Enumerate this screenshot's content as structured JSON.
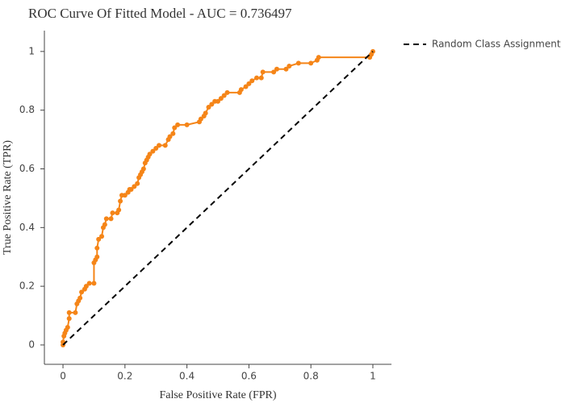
{
  "chart_data": {
    "type": "line",
    "mode": "lines+markers",
    "title": "ROC Curve Of Fitted Model - AUC = 0.736497",
    "x_label": "False Positive Rate (FPR)",
    "y_label": "True Positive Rate (TPR)",
    "xlim": [
      -0.06,
      1.06
    ],
    "ylim": [
      -0.066,
      1.071
    ],
    "xticks": [
      0,
      0.2,
      0.4,
      0.6,
      0.8,
      1
    ],
    "yticks": [
      0,
      0.2,
      0.4,
      0.6,
      0.8,
      1
    ],
    "grid": false,
    "legend_position": "right",
    "series": [
      {
        "color": "#f58518",
        "markers": true,
        "dash": false,
        "x": [
          0,
          0,
          0.003,
          0.006,
          0.01,
          0.015,
          0.02,
          0.02,
          0.04,
          0.045,
          0.05,
          0.055,
          0.06,
          0.07,
          0.075,
          0.085,
          0.1,
          0.1,
          0.105,
          0.11,
          0.11,
          0.115,
          0.125,
          0.13,
          0.135,
          0.14,
          0.155,
          0.16,
          0.175,
          0.18,
          0.185,
          0.19,
          0.2,
          0.21,
          0.215,
          0.22,
          0.23,
          0.24,
          0.245,
          0.25,
          0.255,
          0.26,
          0.265,
          0.27,
          0.275,
          0.28,
          0.29,
          0.3,
          0.31,
          0.33,
          0.34,
          0.345,
          0.355,
          0.36,
          0.37,
          0.4,
          0.44,
          0.445,
          0.455,
          0.46,
          0.47,
          0.48,
          0.49,
          0.5,
          0.51,
          0.52,
          0.53,
          0.57,
          0.575,
          0.59,
          0.6,
          0.61,
          0.625,
          0.64,
          0.645,
          0.68,
          0.69,
          0.72,
          0.73,
          0.76,
          0.8,
          0.82,
          0.825,
          0.99,
          0.995,
          1
        ],
        "values": [
          0,
          0.01,
          0.03,
          0.04,
          0.05,
          0.06,
          0.09,
          0.11,
          0.11,
          0.14,
          0.15,
          0.16,
          0.18,
          0.19,
          0.2,
          0.21,
          0.21,
          0.28,
          0.29,
          0.3,
          0.33,
          0.36,
          0.37,
          0.4,
          0.41,
          0.43,
          0.43,
          0.45,
          0.45,
          0.46,
          0.49,
          0.51,
          0.51,
          0.52,
          0.53,
          0.53,
          0.54,
          0.55,
          0.57,
          0.58,
          0.59,
          0.6,
          0.62,
          0.63,
          0.64,
          0.65,
          0.66,
          0.67,
          0.68,
          0.68,
          0.7,
          0.71,
          0.72,
          0.74,
          0.75,
          0.75,
          0.76,
          0.77,
          0.78,
          0.79,
          0.81,
          0.82,
          0.83,
          0.83,
          0.84,
          0.85,
          0.86,
          0.86,
          0.87,
          0.88,
          0.89,
          0.9,
          0.91,
          0.91,
          0.93,
          0.93,
          0.94,
          0.94,
          0.95,
          0.96,
          0.96,
          0.97,
          0.98,
          0.98,
          0.99,
          1
        ]
      },
      {
        "name": "Random Class Assignment",
        "color": "#000000",
        "markers": false,
        "dash": true,
        "x": [
          0,
          1
        ],
        "values": [
          0,
          1
        ]
      }
    ]
  }
}
